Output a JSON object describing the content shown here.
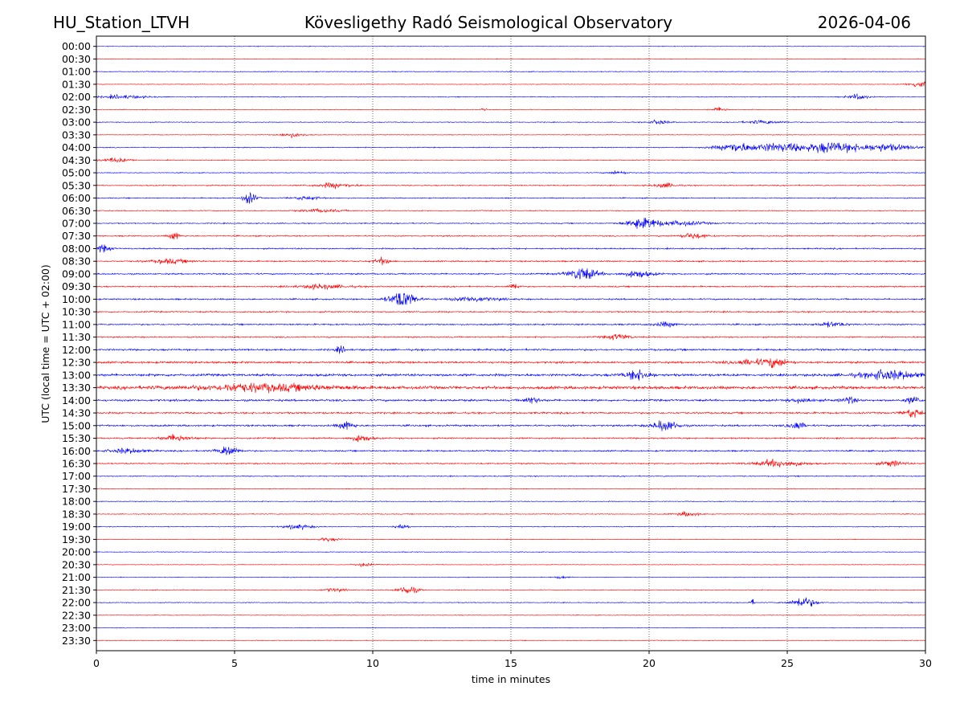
{
  "header": {
    "station": "HU_Station_LTVH",
    "observatory": "Kövesligethy Radó Seismological Observatory",
    "date": "2026-04-06"
  },
  "chart_data": {
    "type": "line",
    "title": "Kövesligethy Radó Seismological Observatory",
    "xlabel": "time in minutes",
    "ylabel": "UTC (local time = UTC + 02:00)",
    "xlim": [
      0,
      30
    ],
    "xticks": [
      "0",
      "5",
      "10",
      "15",
      "20",
      "25",
      "30"
    ],
    "xtick_values": [
      0,
      5,
      10,
      15,
      20,
      25,
      30
    ],
    "grid": "vertical dotted at 5-minute intervals",
    "colors": [
      "#0000ff",
      "#ff0000"
    ],
    "rows": [
      {
        "label": "00:00",
        "noise": 0.5,
        "events": []
      },
      {
        "label": "00:30",
        "noise": 0.5,
        "events": []
      },
      {
        "label": "01:00",
        "noise": 0.6,
        "events": []
      },
      {
        "label": "01:30",
        "noise": 0.5,
        "events": [
          [
            29.7,
            3,
            0.4
          ]
        ]
      },
      {
        "label": "02:00",
        "noise": 0.6,
        "events": [
          [
            0.8,
            1.5,
            1.0
          ],
          [
            27.5,
            2.5,
            0.4
          ]
        ]
      },
      {
        "label": "02:30",
        "noise": 0.5,
        "events": [
          [
            22.5,
            2,
            0.3
          ],
          [
            14,
            1.5,
            0.1
          ]
        ]
      },
      {
        "label": "03:00",
        "noise": 0.6,
        "events": [
          [
            20.3,
            2,
            0.4
          ],
          [
            24,
            1.5,
            0.8
          ]
        ]
      },
      {
        "label": "03:30",
        "noise": 0.5,
        "events": [
          [
            7,
            2,
            0.5
          ]
        ]
      },
      {
        "label": "04:00",
        "noise": 0.7,
        "events": [
          [
            23,
            3.5,
            0.8
          ],
          [
            24.5,
            3,
            1.5
          ],
          [
            26.5,
            4,
            1.5
          ],
          [
            28.5,
            2.5,
            1.2
          ]
        ]
      },
      {
        "label": "04:30",
        "noise": 0.6,
        "events": [
          [
            0.6,
            2,
            0.6
          ]
        ]
      },
      {
        "label": "05:00",
        "noise": 0.6,
        "events": [
          [
            18.8,
            1.5,
            0.4
          ]
        ]
      },
      {
        "label": "05:30",
        "noise": 0.8,
        "events": [
          [
            8.5,
            2,
            0.8
          ],
          [
            20.5,
            2,
            0.5
          ]
        ]
      },
      {
        "label": "06:00",
        "noise": 0.8,
        "events": [
          [
            5.5,
            6,
            0.25
          ],
          [
            7.5,
            1.5,
            0.6
          ]
        ]
      },
      {
        "label": "06:30",
        "noise": 0.7,
        "events": [
          [
            8,
            1.5,
            0.8
          ]
        ]
      },
      {
        "label": "07:00",
        "noise": 0.8,
        "events": [
          [
            19.7,
            6,
            0.6
          ],
          [
            21,
            2,
            1.0
          ]
        ]
      },
      {
        "label": "07:30",
        "noise": 0.9,
        "events": [
          [
            2.8,
            4,
            0.2
          ],
          [
            21.5,
            2.5,
            0.5
          ]
        ]
      },
      {
        "label": "08:00",
        "noise": 1.0,
        "events": [
          [
            0.2,
            3,
            0.3
          ]
        ]
      },
      {
        "label": "08:30",
        "noise": 1.0,
        "events": [
          [
            2.5,
            2,
            0.8
          ],
          [
            10.3,
            3,
            0.3
          ]
        ]
      },
      {
        "label": "09:00",
        "noise": 1.1,
        "events": [
          [
            17.5,
            6,
            0.6
          ],
          [
            19.5,
            3,
            0.6
          ]
        ]
      },
      {
        "label": "09:30",
        "noise": 1.0,
        "events": [
          [
            15.1,
            3,
            0.2
          ],
          [
            8,
            2,
            1
          ]
        ]
      },
      {
        "label": "10:00",
        "noise": 1.1,
        "events": [
          [
            11,
            9,
            0.5
          ],
          [
            13.5,
            2,
            1
          ]
        ]
      },
      {
        "label": "10:30",
        "noise": 1.0,
        "events": []
      },
      {
        "label": "11:00",
        "noise": 1.1,
        "events": [
          [
            20.5,
            2,
            0.5
          ],
          [
            26.5,
            2,
            0.6
          ]
        ]
      },
      {
        "label": "11:30",
        "noise": 1.0,
        "events": [
          [
            18.8,
            2.5,
            0.5
          ]
        ]
      },
      {
        "label": "12:00",
        "noise": 1.4,
        "events": [
          [
            8.8,
            3,
            0.2
          ]
        ]
      },
      {
        "label": "12:30",
        "noise": 1.5,
        "events": [
          [
            24.5,
            4,
            0.5
          ],
          [
            23.5,
            2,
            0.8
          ]
        ]
      },
      {
        "label": "13:00",
        "noise": 1.8,
        "events": [
          [
            19.5,
            5,
            0.5
          ],
          [
            28.5,
            4,
            1.2
          ]
        ]
      },
      {
        "label": "13:30",
        "noise": 2.2,
        "events": [
          [
            5.5,
            3,
            3
          ]
        ]
      },
      {
        "label": "14:00",
        "noise": 1.5,
        "events": [
          [
            15.7,
            3,
            0.3
          ],
          [
            27.2,
            3,
            0.3
          ],
          [
            29.5,
            3,
            0.3
          ],
          [
            25.5,
            2,
            0.5
          ]
        ]
      },
      {
        "label": "14:30",
        "noise": 1.3,
        "events": [
          [
            29.5,
            4,
            0.4
          ]
        ]
      },
      {
        "label": "15:00",
        "noise": 1.3,
        "events": [
          [
            9,
            4,
            0.3
          ],
          [
            20.5,
            5,
            0.5
          ],
          [
            25.3,
            4,
            0.3
          ]
        ]
      },
      {
        "label": "15:30",
        "noise": 1.1,
        "events": [
          [
            2.8,
            3,
            0.6
          ],
          [
            9.5,
            3,
            0.4
          ]
        ]
      },
      {
        "label": "16:00",
        "noise": 1.1,
        "events": [
          [
            4.7,
            5,
            0.4
          ],
          [
            1,
            2,
            0.8
          ]
        ]
      },
      {
        "label": "16:30",
        "noise": 1.0,
        "events": [
          [
            24.5,
            3,
            1.0
          ],
          [
            28.7,
            2.5,
            0.5
          ]
        ]
      },
      {
        "label": "17:00",
        "noise": 0.8,
        "events": []
      },
      {
        "label": "17:30",
        "noise": 0.6,
        "events": []
      },
      {
        "label": "18:00",
        "noise": 0.6,
        "events": []
      },
      {
        "label": "18:30",
        "noise": 0.6,
        "events": [
          [
            21.3,
            2,
            0.5
          ]
        ]
      },
      {
        "label": "19:00",
        "noise": 0.6,
        "events": [
          [
            7.2,
            2,
            0.6
          ],
          [
            11,
            1.5,
            0.3
          ]
        ]
      },
      {
        "label": "19:30",
        "noise": 0.5,
        "events": [
          [
            8.3,
            1.5,
            0.5
          ]
        ]
      },
      {
        "label": "20:00",
        "noise": 0.5,
        "events": []
      },
      {
        "label": "20:30",
        "noise": 0.5,
        "events": [
          [
            9.6,
            1.5,
            0.4
          ]
        ]
      },
      {
        "label": "21:00",
        "noise": 0.5,
        "events": [
          [
            16.8,
            1.2,
            0.3
          ]
        ]
      },
      {
        "label": "21:30",
        "noise": 0.6,
        "events": [
          [
            11.2,
            4,
            0.4
          ],
          [
            8.5,
            1.5,
            0.5
          ]
        ]
      },
      {
        "label": "22:00",
        "noise": 0.6,
        "events": [
          [
            25.5,
            5,
            0.5
          ],
          [
            23.7,
            3,
            0.1
          ]
        ]
      },
      {
        "label": "22:30",
        "noise": 0.5,
        "events": []
      },
      {
        "label": "23:00",
        "noise": 0.5,
        "events": []
      },
      {
        "label": "23:30",
        "noise": 0.5,
        "events": []
      }
    ]
  }
}
